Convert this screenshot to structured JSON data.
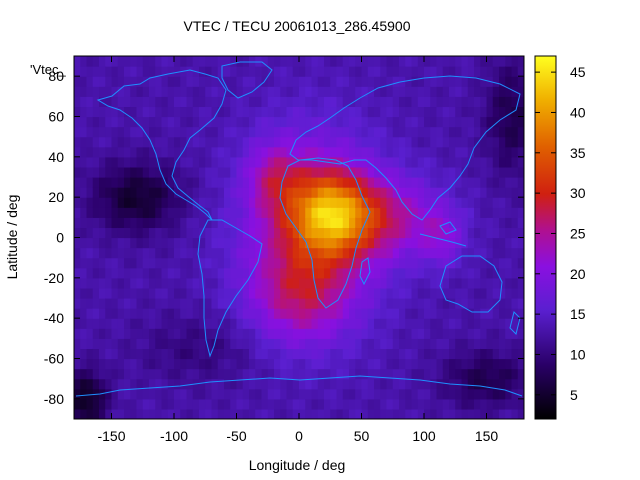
{
  "chart_data": {
    "type": "heatmap",
    "title": "VTEC / TECU 20061013_286.45900",
    "xlabel": "Longitude / deg",
    "ylabel": "Latitude / deg",
    "series_label": "'Vtec_",
    "xlim": [
      -180,
      180
    ],
    "ylim": [
      -90,
      90
    ],
    "x_ticks": [
      {
        "value": -150,
        "label": "-150"
      },
      {
        "value": -100,
        "label": "-100"
      },
      {
        "value": -50,
        "label": "-50"
      },
      {
        "value": 0,
        "label": "0"
      },
      {
        "value": 50,
        "label": "50"
      },
      {
        "value": 100,
        "label": "100"
      },
      {
        "value": 150,
        "label": "150"
      }
    ],
    "y_ticks": [
      {
        "value": -80,
        "label": "-80"
      },
      {
        "value": -60,
        "label": "-60"
      },
      {
        "value": -40,
        "label": "-40"
      },
      {
        "value": -20,
        "label": "-20"
      },
      {
        "value": 0,
        "label": "0"
      },
      {
        "value": 20,
        "label": "20"
      },
      {
        "value": 40,
        "label": "40"
      },
      {
        "value": 60,
        "label": "60"
      },
      {
        "value": 80,
        "label": "80"
      }
    ],
    "colorbar": {
      "range": [
        2,
        47
      ],
      "ticks": [
        {
          "value": 5,
          "label": "5"
        },
        {
          "value": 10,
          "label": "10"
        },
        {
          "value": 15,
          "label": "15"
        },
        {
          "value": 20,
          "label": "20"
        },
        {
          "value": 25,
          "label": "25"
        },
        {
          "value": 30,
          "label": "30"
        },
        {
          "value": 35,
          "label": "35"
        },
        {
          "value": 40,
          "label": "40"
        },
        {
          "value": 45,
          "label": "45"
        }
      ]
    },
    "field": {
      "background": 13,
      "peak_region": {
        "center_lon": 25,
        "center_lat": 12,
        "peak_value": 46
      },
      "regions": [
        {
          "lon": 25,
          "lat": 12,
          "sigma_lon": 22,
          "sigma_lat": 14,
          "amp": 17
        },
        {
          "lon": 10,
          "lat": 5,
          "sigma_lon": 38,
          "sigma_lat": 32,
          "amp": 13
        },
        {
          "lon": 70,
          "lat": 10,
          "sigma_lon": 32,
          "sigma_lat": 14,
          "amp": 10
        },
        {
          "lon": 0,
          "lat": -30,
          "sigma_lon": 28,
          "sigma_lat": 16,
          "amp": 8
        },
        {
          "lon": -20,
          "lat": 30,
          "sigma_lon": 15,
          "sigma_lat": 12,
          "amp": 7
        },
        {
          "lon": 115,
          "lat": 0,
          "sigma_lon": 12,
          "sigma_lat": 10,
          "amp": 6
        },
        {
          "lon": -130,
          "lat": 20,
          "sigma_lon": 25,
          "sigma_lat": 12,
          "amp": -8
        },
        {
          "lon": -80,
          "lat": -55,
          "sigma_lon": 35,
          "sigma_lat": 12,
          "amp": -3
        },
        {
          "lon": -170,
          "lat": -80,
          "sigma_lon": 12,
          "sigma_lat": 10,
          "amp": -9
        },
        {
          "lon": 170,
          "lat": 60,
          "sigma_lon": 15,
          "sigma_lat": 20,
          "amp": -6
        },
        {
          "lon": 150,
          "lat": -70,
          "sigma_lon": 25,
          "sigma_lat": 10,
          "amp": -6
        }
      ]
    },
    "colors": {
      "axis": "#000000",
      "coastline": "#1e90ff"
    }
  }
}
